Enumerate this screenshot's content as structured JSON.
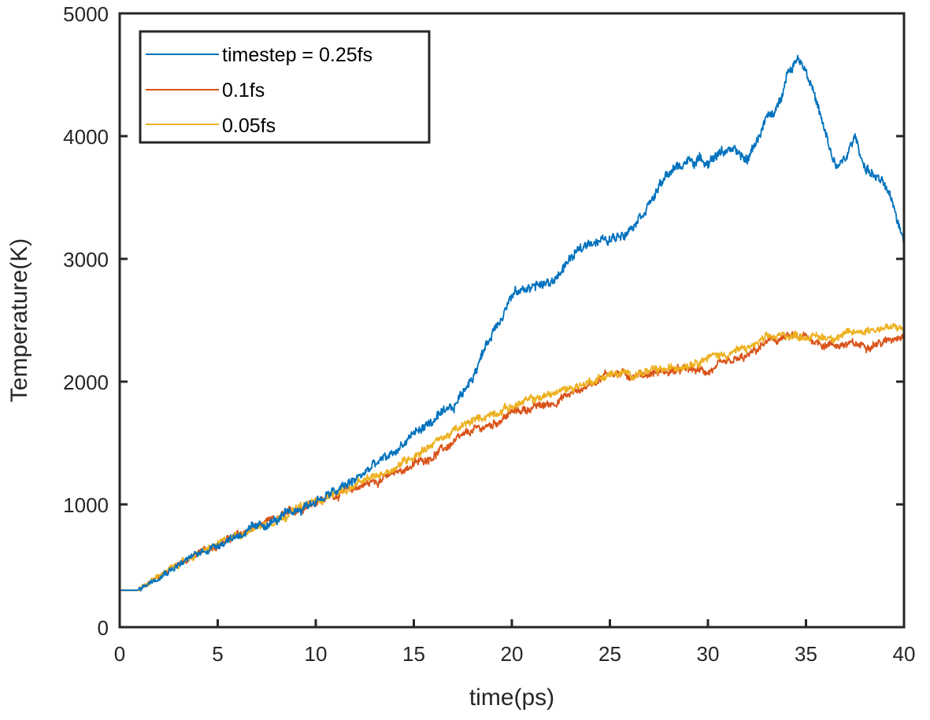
{
  "chart_data": {
    "type": "line",
    "title": "",
    "xlabel": "time(ps)",
    "ylabel": "Temperature(K)",
    "xlim": [
      0,
      40
    ],
    "ylim": [
      0,
      5000
    ],
    "xticks": [
      0,
      5,
      10,
      15,
      20,
      25,
      30,
      35,
      40
    ],
    "yticks": [
      0,
      1000,
      2000,
      3000,
      4000,
      5000
    ],
    "xtick_labels": [
      "0",
      "5",
      "10",
      "15",
      "20",
      "25",
      "30",
      "35",
      "40"
    ],
    "ytick_labels": [
      "0",
      "1000",
      "2000",
      "3000",
      "4000",
      "5000"
    ],
    "grid": false,
    "legend_position": "top-left",
    "series": [
      {
        "name": "timestep = 0.25fs",
        "color": "#0072BD",
        "noise": 55,
        "x": [
          0,
          0.9,
          2,
          4,
          6,
          8,
          10,
          11,
          12,
          13,
          14,
          15,
          16,
          17,
          18,
          19,
          20,
          21,
          22,
          23,
          24,
          25,
          26,
          27,
          28,
          29,
          30,
          31,
          32,
          33,
          33.5,
          34,
          34.6,
          35,
          35.5,
          36,
          36.5,
          37,
          37.5,
          38,
          39,
          39.5,
          40
        ],
        "y": [
          300,
          300,
          420,
          600,
          750,
          870,
          1030,
          1100,
          1200,
          1320,
          1420,
          1580,
          1680,
          1780,
          2050,
          2400,
          2700,
          2780,
          2800,
          3000,
          3150,
          3150,
          3250,
          3450,
          3700,
          3800,
          3800,
          3900,
          3800,
          4150,
          4200,
          4500,
          4650,
          4550,
          4300,
          4000,
          3750,
          3800,
          4000,
          3750,
          3600,
          3400,
          3150
        ]
      },
      {
        "name": "0.1fs",
        "color": "#D95319",
        "noise": 45,
        "x": [
          0,
          0.9,
          2,
          4,
          6,
          8,
          10,
          12,
          14,
          16,
          18,
          19,
          20,
          22,
          24,
          25,
          26,
          28,
          29,
          30,
          31,
          32,
          33,
          34,
          35,
          36,
          37,
          38,
          39,
          40
        ],
        "y": [
          300,
          300,
          420,
          600,
          750,
          880,
          1030,
          1130,
          1250,
          1400,
          1600,
          1650,
          1750,
          1820,
          1980,
          2080,
          2050,
          2080,
          2100,
          2080,
          2150,
          2200,
          2320,
          2360,
          2360,
          2300,
          2300,
          2300,
          2320,
          2400
        ]
      },
      {
        "name": "0.05fs",
        "color": "#EDB120",
        "noise": 45,
        "x": [
          0,
          0.9,
          2,
          4,
          6,
          8,
          10,
          12,
          14,
          16,
          18,
          20,
          22,
          24,
          25,
          26,
          28,
          30,
          31,
          32,
          33,
          34,
          35,
          36,
          37,
          38,
          39,
          40
        ],
        "y": [
          300,
          300,
          420,
          600,
          750,
          880,
          1030,
          1150,
          1300,
          1500,
          1680,
          1800,
          1900,
          2000,
          2060,
          2060,
          2100,
          2200,
          2230,
          2270,
          2350,
          2380,
          2370,
          2360,
          2380,
          2420,
          2440,
          2430
        ]
      }
    ]
  }
}
